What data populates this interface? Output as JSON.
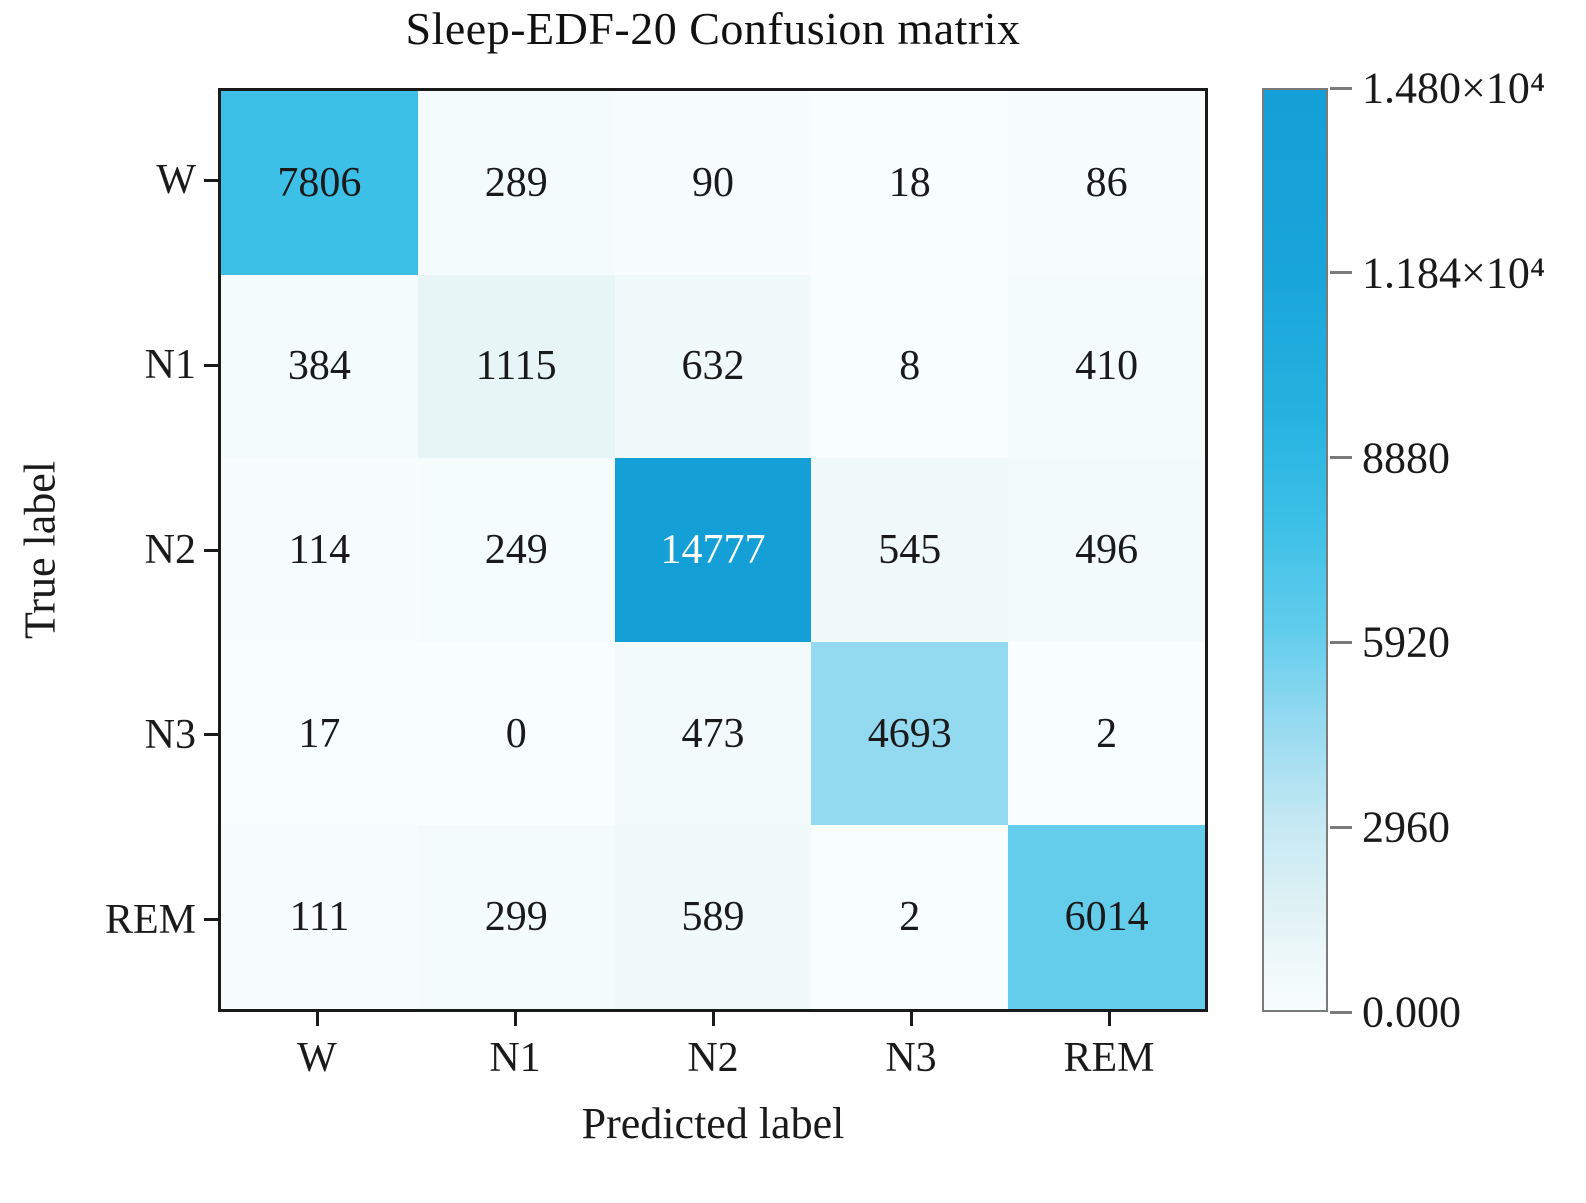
{
  "title": "Sleep-EDF-20 Confusion matrix",
  "chart_data": {
    "type": "heatmap",
    "title": "Sleep-EDF-20 Confusion matrix",
    "xlabel": "Predicted label",
    "ylabel": "True label",
    "x_categories": [
      "W",
      "N1",
      "N2",
      "N3",
      "REM"
    ],
    "y_categories": [
      "W",
      "N1",
      "N2",
      "N3",
      "REM"
    ],
    "matrix": [
      [
        7806,
        289,
        90,
        18,
        86
      ],
      [
        384,
        1115,
        632,
        8,
        410
      ],
      [
        114,
        249,
        14777,
        545,
        496
      ],
      [
        17,
        0,
        473,
        4693,
        2
      ],
      [
        111,
        299,
        589,
        2,
        6014
      ]
    ],
    "vmin": 0,
    "vmax": 14800,
    "colorbar_tick_labels": [
      "1.480×10⁴",
      "1.184×10⁴",
      "8880",
      "5920",
      "2960",
      "0.000"
    ],
    "colorbar_tick_values": [
      14800,
      11840,
      8880,
      5920,
      2960,
      0
    ],
    "colormap_stops": [
      [
        0.0,
        "#f8fdfd"
      ],
      [
        0.05,
        "#eff9fa"
      ],
      [
        0.1,
        "#e2f2f5"
      ],
      [
        0.2,
        "#c6e9f3"
      ],
      [
        0.32,
        "#92d9f0"
      ],
      [
        0.41,
        "#62cdec"
      ],
      [
        0.53,
        "#3cc0e7"
      ],
      [
        0.65,
        "#25b2e0"
      ],
      [
        0.8,
        "#18a5da"
      ],
      [
        1.0,
        "#149fd6"
      ]
    ],
    "cell_text_dark": "#1a1a1a",
    "cell_text_light": "#ffffff",
    "frame_color": "#1a1a1a",
    "colorbar_border_color": "#7a7a7a",
    "legend_position": "right",
    "grid": false
  }
}
